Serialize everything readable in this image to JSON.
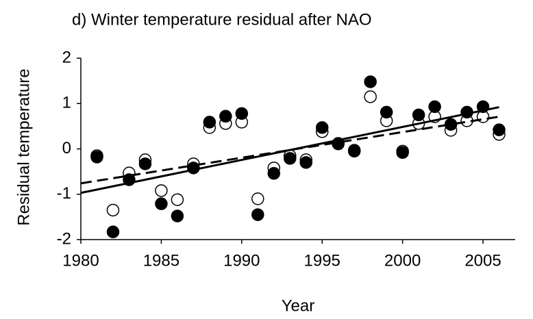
{
  "chart_data": {
    "type": "scatter",
    "title": "d) Winter temperature residual after NAO",
    "x_label": "Year",
    "y_label": "Residual temperature",
    "xlim": [
      1980,
      2007
    ],
    "xticks": [
      1980,
      1985,
      1990,
      1995,
      2000,
      2005
    ],
    "ylim": [
      -2,
      2
    ],
    "yticks": [
      -2,
      -1,
      0,
      1,
      2
    ],
    "x": [
      1981,
      1982,
      1983,
      1984,
      1985,
      1986,
      1987,
      1988,
      1989,
      1990,
      1991,
      1992,
      1993,
      1994,
      1995,
      1996,
      1997,
      1998,
      1999,
      2000,
      2001,
      2002,
      2003,
      2004,
      2005,
      2006
    ],
    "series": [
      {
        "color": "#000000",
        "fill": "#ffffff",
        "values": [
          -0.15,
          -1.35,
          -0.53,
          -0.24,
          -0.92,
          -1.12,
          -0.33,
          0.47,
          0.56,
          0.59,
          -1.1,
          -0.42,
          -0.15,
          -0.24,
          0.38,
          0.12,
          -0.03,
          1.15,
          0.62,
          -0.05,
          0.56,
          0.71,
          0.41,
          0.62,
          0.71,
          0.32
        ]
      },
      {
        "color": "#000000",
        "fill": "#000000",
        "values": [
          -0.18,
          -1.83,
          -0.68,
          -0.33,
          -1.21,
          -1.48,
          -0.42,
          0.59,
          0.72,
          0.78,
          -1.45,
          -0.54,
          -0.21,
          -0.3,
          0.47,
          0.11,
          -0.05,
          1.48,
          0.81,
          -0.08,
          0.75,
          0.93,
          0.54,
          0.81,
          0.93,
          0.42
        ]
      }
    ],
    "trend_lines": [
      {
        "style": "solid",
        "color": "#000000",
        "x": [
          1980,
          2006
        ],
        "values": [
          -0.97,
          0.92
        ]
      },
      {
        "style": "dashed",
        "color": "#000000",
        "x": [
          1980,
          2006
        ],
        "values": [
          -0.76,
          0.71
        ]
      }
    ]
  }
}
